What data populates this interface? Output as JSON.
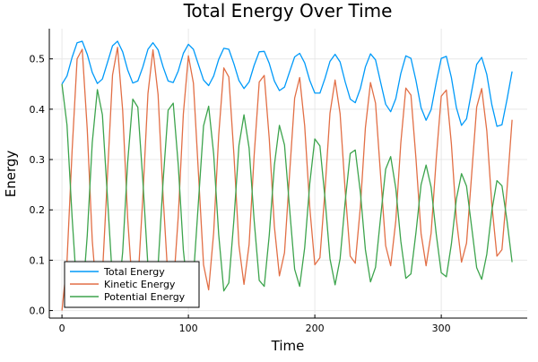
{
  "chart_data": {
    "type": "line",
    "title": "Total Energy Over Time",
    "xlabel": "Time",
    "ylabel": "Energy",
    "xlim": [
      -10,
      368
    ],
    "ylim": [
      -0.015,
      0.56
    ],
    "xticks": [
      0,
      100,
      200,
      300
    ],
    "xtick_labels": [
      "0",
      "100",
      "200",
      "300"
    ],
    "yticks": [
      0.0,
      0.1,
      0.2,
      0.3,
      0.4,
      0.5
    ],
    "ytick_labels": [
      "0.0",
      "0.1",
      "0.2",
      "0.3",
      "0.4",
      "0.5"
    ],
    "grid": true,
    "legend_position": "bottom-left",
    "x_step": 4,
    "x_start": 0,
    "series": [
      {
        "name": "Total Energy",
        "color": "#009af9",
        "values": [
          0.45,
          0.466,
          0.503,
          0.532,
          0.535,
          0.509,
          0.473,
          0.451,
          0.46,
          0.493,
          0.526,
          0.535,
          0.514,
          0.478,
          0.452,
          0.456,
          0.484,
          0.519,
          0.532,
          0.518,
          0.484,
          0.456,
          0.453,
          0.476,
          0.511,
          0.529,
          0.519,
          0.488,
          0.458,
          0.447,
          0.466,
          0.499,
          0.521,
          0.519,
          0.49,
          0.457,
          0.441,
          0.454,
          0.487,
          0.514,
          0.515,
          0.491,
          0.456,
          0.437,
          0.444,
          0.474,
          0.504,
          0.511,
          0.492,
          0.457,
          0.432,
          0.432,
          0.461,
          0.495,
          0.509,
          0.494,
          0.454,
          0.42,
          0.413,
          0.441,
          0.484,
          0.51,
          0.498,
          0.454,
          0.41,
          0.395,
          0.421,
          0.471,
          0.506,
          0.501,
          0.457,
          0.403,
          0.378,
          0.399,
          0.453,
          0.501,
          0.505,
          0.463,
          0.403,
          0.368,
          0.381,
          0.436,
          0.489,
          0.503,
          0.469,
          0.409,
          0.366,
          0.369,
          0.419,
          0.475
        ]
      },
      {
        "name": "Kinetic Energy",
        "color": "#e26f46",
        "values": [
          0.0,
          0.097,
          0.317,
          0.5,
          0.519,
          0.36,
          0.139,
          0.012,
          0.071,
          0.27,
          0.468,
          0.523,
          0.398,
          0.183,
          0.032,
          0.052,
          0.226,
          0.431,
          0.518,
          0.429,
          0.227,
          0.058,
          0.041,
          0.187,
          0.391,
          0.506,
          0.452,
          0.27,
          0.091,
          0.041,
          0.155,
          0.348,
          0.482,
          0.464,
          0.309,
          0.129,
          0.052,
          0.131,
          0.307,
          0.454,
          0.467,
          0.341,
          0.167,
          0.069,
          0.115,
          0.27,
          0.422,
          0.463,
          0.367,
          0.204,
          0.091,
          0.105,
          0.237,
          0.392,
          0.458,
          0.391,
          0.237,
          0.108,
          0.094,
          0.206,
          0.363,
          0.453,
          0.412,
          0.27,
          0.129,
          0.089,
          0.178,
          0.333,
          0.442,
          0.428,
          0.302,
          0.153,
          0.089,
          0.154,
          0.301,
          0.426,
          0.438,
          0.331,
          0.181,
          0.096,
          0.134,
          0.27,
          0.404,
          0.441,
          0.357,
          0.211,
          0.108,
          0.121,
          0.24,
          0.379
        ]
      },
      {
        "name": "Potential Energy",
        "color": "#3da44d",
        "values": [
          0.45,
          0.369,
          0.186,
          0.032,
          0.016,
          0.149,
          0.334,
          0.439,
          0.389,
          0.223,
          0.058,
          0.012,
          0.116,
          0.295,
          0.42,
          0.404,
          0.258,
          0.088,
          0.014,
          0.089,
          0.257,
          0.398,
          0.412,
          0.289,
          0.12,
          0.023,
          0.067,
          0.218,
          0.367,
          0.406,
          0.311,
          0.151,
          0.039,
          0.055,
          0.181,
          0.328,
          0.389,
          0.323,
          0.18,
          0.06,
          0.048,
          0.15,
          0.289,
          0.368,
          0.329,
          0.204,
          0.082,
          0.048,
          0.125,
          0.253,
          0.341,
          0.327,
          0.224,
          0.103,
          0.051,
          0.103,
          0.217,
          0.312,
          0.319,
          0.235,
          0.121,
          0.057,
          0.086,
          0.184,
          0.281,
          0.306,
          0.243,
          0.138,
          0.064,
          0.073,
          0.155,
          0.25,
          0.289,
          0.245,
          0.152,
          0.075,
          0.067,
          0.132,
          0.222,
          0.272,
          0.247,
          0.166,
          0.085,
          0.062,
          0.112,
          0.198,
          0.258,
          0.248,
          0.179,
          0.096
        ]
      }
    ]
  }
}
